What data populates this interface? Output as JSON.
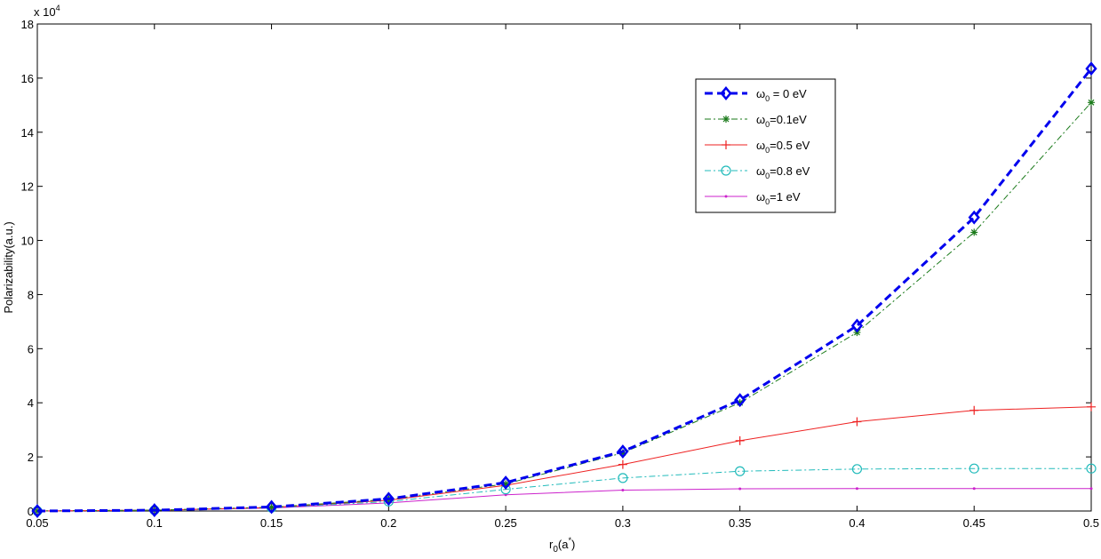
{
  "chart_data": {
    "type": "line",
    "title": "",
    "xlabel": "r",
    "xlabel_sub": "0",
    "xlabel_paren": "(a",
    "xlabel_sup": "*",
    "xlabel_close": ")",
    "ylabel": "Polarizability(a.u.)",
    "multiplier_text": "x 10",
    "multiplier_exp": "4",
    "xlim": [
      0.05,
      0.5
    ],
    "ylim": [
      0,
      18
    ],
    "x_ticks": [
      "0.05",
      "0.1",
      "0.15",
      "0.2",
      "0.25",
      "0.3",
      "0.35",
      "0.4",
      "0.45",
      "0.5"
    ],
    "y_ticks": [
      "0",
      "2",
      "4",
      "6",
      "8",
      "10",
      "12",
      "14",
      "16",
      "18"
    ],
    "grid": false,
    "legend_position": "top-right",
    "x": [
      0.05,
      0.1,
      0.15,
      0.2,
      0.25,
      0.3,
      0.35,
      0.4,
      0.45,
      0.5
    ],
    "series": [
      {
        "name": "ω0 = 0 eV",
        "legend_symbol": "ω",
        "legend_sub": "0",
        "legend_rest": " = 0 eV",
        "color": "#0000ee",
        "line_style": "dashed",
        "marker": "diamond",
        "values": [
          0.0,
          0.03,
          0.15,
          0.45,
          1.05,
          2.2,
          4.1,
          6.85,
          10.85,
          16.35
        ]
      },
      {
        "name": "ω0=0.1eV",
        "legend_symbol": "ω",
        "legend_sub": "0",
        "legend_rest": "=0.1eV",
        "color": "#1a7a1a",
        "line_style": "dashdot",
        "marker": "asterisk",
        "values": [
          0.0,
          0.03,
          0.14,
          0.43,
          1.0,
          2.15,
          4.0,
          6.6,
          10.3,
          15.1
        ]
      },
      {
        "name": "ω0=0.5 eV",
        "legend_symbol": "ω",
        "legend_sub": "0",
        "legend_rest": "=0.5 eV",
        "color": "#ee2222",
        "line_style": "solid",
        "marker": "plus",
        "values": [
          0.0,
          0.03,
          0.13,
          0.4,
          0.95,
          1.72,
          2.6,
          3.3,
          3.72,
          3.85
        ]
      },
      {
        "name": "ω0=0.8 eV",
        "legend_symbol": "ω",
        "legend_sub": "0",
        "legend_rest": "=0.8 eV",
        "color": "#22bbbb",
        "line_style": "dashdot",
        "marker": "circle",
        "values": [
          0.0,
          0.03,
          0.12,
          0.35,
          0.8,
          1.22,
          1.47,
          1.55,
          1.57,
          1.57
        ]
      },
      {
        "name": "ω0=1 eV",
        "legend_symbol": "ω",
        "legend_sub": "0",
        "legend_rest": "=1 eV",
        "color": "#cc22cc",
        "line_style": "solid",
        "marker": "point",
        "values": [
          0.0,
          0.03,
          0.11,
          0.3,
          0.6,
          0.77,
          0.82,
          0.83,
          0.83,
          0.83
        ]
      }
    ]
  }
}
